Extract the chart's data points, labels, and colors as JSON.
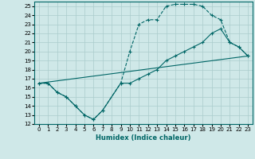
{
  "xlabel": "Humidex (Indice chaleur)",
  "bg_color": "#cfe8e8",
  "grid_color": "#aacccc",
  "line_color": "#006666",
  "xlim": [
    -0.5,
    23.5
  ],
  "ylim": [
    12,
    25.5
  ],
  "xticks": [
    0,
    1,
    2,
    3,
    4,
    5,
    6,
    7,
    8,
    9,
    10,
    11,
    12,
    13,
    14,
    15,
    16,
    17,
    18,
    19,
    20,
    21,
    22,
    23
  ],
  "yticks": [
    12,
    13,
    14,
    15,
    16,
    17,
    18,
    19,
    20,
    21,
    22,
    23,
    24,
    25
  ],
  "curve1_x": [
    0,
    1,
    2,
    3,
    4,
    5,
    6,
    7,
    9,
    10,
    11,
    12,
    13,
    14,
    15,
    16,
    17,
    18,
    19,
    20,
    21,
    22,
    23
  ],
  "curve1_y": [
    16.5,
    16.5,
    15.5,
    15,
    14,
    13,
    12.5,
    13.5,
    16.5,
    20,
    23,
    23.5,
    23.5,
    25,
    25.2,
    25.2,
    25.2,
    25,
    24,
    23.5,
    21,
    20.5,
    19.5
  ],
  "curve2_x": [
    0,
    1,
    2,
    3,
    4,
    5,
    6,
    7,
    9,
    10,
    11,
    12,
    13,
    14,
    15,
    16,
    17,
    18,
    19,
    20,
    21,
    22,
    23
  ],
  "curve2_y": [
    16.5,
    16.5,
    15.5,
    15,
    14,
    13,
    12.5,
    13.5,
    16.5,
    16.5,
    17,
    17.5,
    18,
    19,
    19.5,
    20,
    20.5,
    21,
    22,
    22.5,
    21,
    20.5,
    19.5
  ],
  "curve3_x": [
    0,
    23
  ],
  "curve3_y": [
    16.5,
    19.5
  ],
  "xlabel_fontsize": 6,
  "tick_fontsize": 5
}
